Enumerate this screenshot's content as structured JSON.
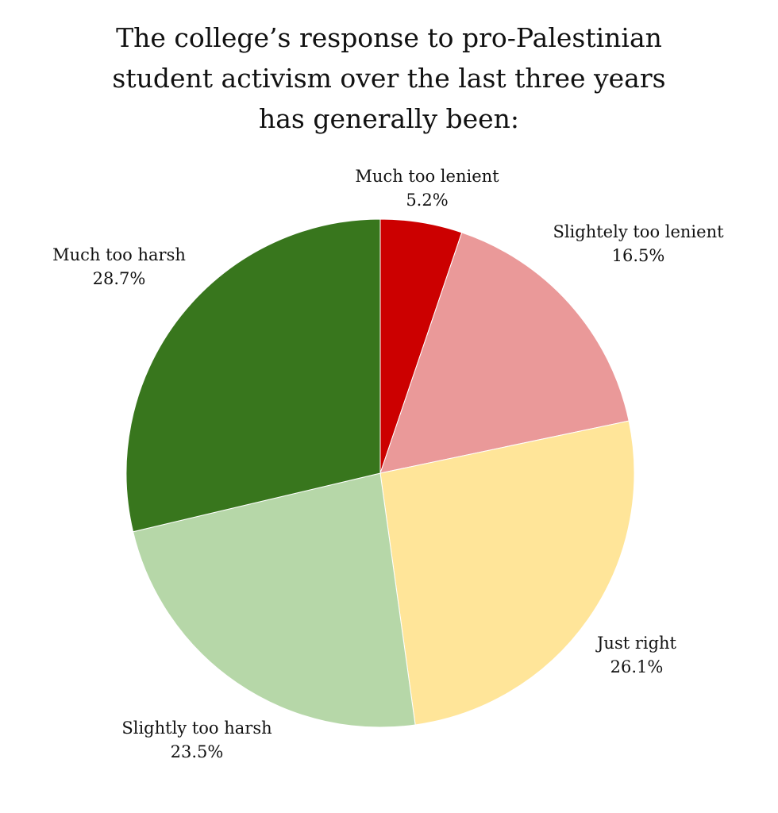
{
  "chart_data": {
    "type": "pie",
    "title_lines": [
      "The college’s response to pro-Palestinian",
      "student activism over the last three years",
      "has generally been:"
    ],
    "start": "top",
    "direction": "clockwise",
    "slices": [
      {
        "label": "Much too lenient",
        "value": 5.2,
        "display": "5.2%",
        "color": "#cc0000"
      },
      {
        "label": "Slightely too lenient",
        "value": 16.5,
        "display": "16.5%",
        "color": "#ea9999"
      },
      {
        "label": "Just right",
        "value": 26.1,
        "display": "26.1%",
        "color": "#ffe599"
      },
      {
        "label": "Slightly too harsh",
        "value": 23.5,
        "display": "23.5%",
        "color": "#b6d7a8"
      },
      {
        "label": "Much too harsh",
        "value": 28.7,
        "display": "28.7%",
        "color": "#38761d"
      }
    ]
  }
}
